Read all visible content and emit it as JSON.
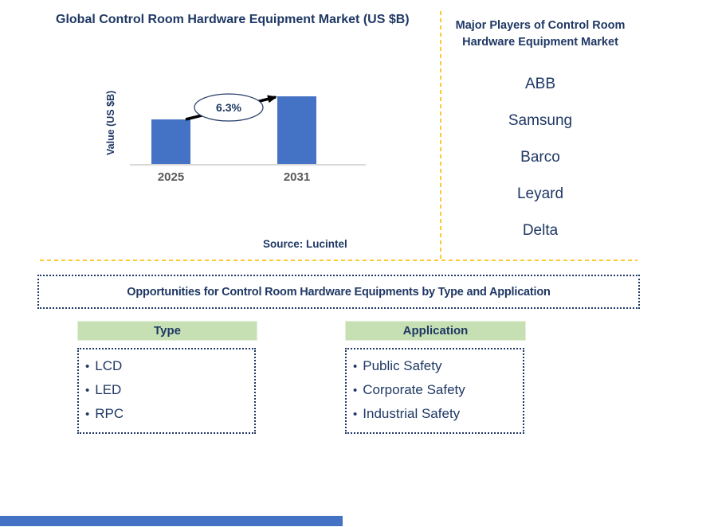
{
  "colors": {
    "navy_text": "#1F3864",
    "bar_blue": "#4472C4",
    "header_green": "#C6E0B4",
    "divider_yellow": "#FFC933",
    "axis_gray": "#D9D9D9",
    "x_label_gray": "#595959",
    "footer_blue": "#4472C4"
  },
  "market_chart": {
    "title": "Global Control Room Hardware Equipment Market (US $B)",
    "y_axis_label": "Value (US $B)",
    "growth_label": "6.3%",
    "source": "Source: Lucintel"
  },
  "chart_data": {
    "type": "bar",
    "categories": [
      "2025",
      "2031"
    ],
    "values": [
      0.66,
      1.0
    ],
    "title": "Global Control Room Hardware Equipment Market (US $B)",
    "xlabel": "",
    "ylabel": "Value (US $B)",
    "ylim": [
      0,
      1.15
    ],
    "bar_color": "#4472C4",
    "annotation": "6.3%",
    "legend": "none",
    "grid": "off"
  },
  "major_players": {
    "title": "Major Players of Control Room Hardware Equipment Market",
    "players": [
      "ABB",
      "Samsung",
      "Barco",
      "Leyard",
      "Delta"
    ]
  },
  "opportunities": {
    "title": "Opportunities for Control Room Hardware Equipments by Type and Application",
    "type_section": {
      "header": "Type",
      "items": [
        "LCD",
        "LED",
        "RPC"
      ]
    },
    "application_section": {
      "header": "Application",
      "items": [
        "Public Safety",
        "Corporate Safety",
        "Industrial Safety"
      ]
    }
  }
}
